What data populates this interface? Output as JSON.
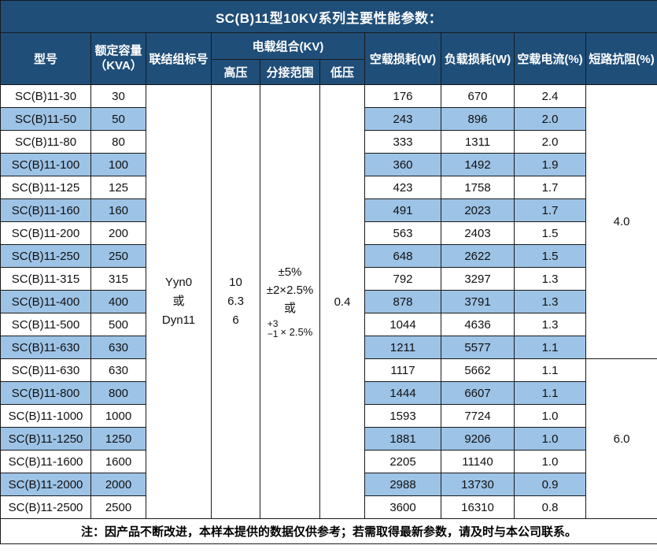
{
  "title": "SC(B)11型10KV系列主要性能参数：",
  "colors": {
    "header_bg": "#1f4e79",
    "header_text": "#ffffff",
    "stripe_bg": "#9dc3e6",
    "border": "#1a1a1a",
    "body_text": "#111111"
  },
  "header": {
    "model": "型号",
    "capacity_line1": "额定容量",
    "capacity_line2": "（KVA）",
    "vector_group": "联结组标号",
    "voltage_combo": "电载组合(KV)",
    "hv": "高压",
    "tap_range": "分接范围",
    "lv": "低压",
    "no_load_loss": "空载损耗(W)",
    "load_loss": "负载损耗(W)",
    "no_load_current": "空载电流(%)",
    "short_circuit_impedance": "短路抗阻(%)"
  },
  "merged": {
    "vector_group_lines": [
      "Yyn0",
      "或",
      "Dyn11"
    ],
    "hv_lines": [
      "10",
      "6.3",
      "6"
    ],
    "tap_lines": [
      "±5%",
      "±2×2.5%",
      "或"
    ],
    "tap_fraction": {
      "top": "+3",
      "bottom": "−1",
      "suffix": "× 2.5%"
    },
    "lv": "0.4",
    "impedance_groups": [
      {
        "value": "4.0",
        "start": 0,
        "span": 12
      },
      {
        "value": "6.0",
        "start": 12,
        "span": 7
      }
    ]
  },
  "rows": [
    {
      "model": "SC(B)11-30",
      "kva": "30",
      "no_load": "176",
      "load": "670",
      "current": "2.4"
    },
    {
      "model": "SC(B)11-50",
      "kva": "50",
      "no_load": "243",
      "load": "896",
      "current": "2.0"
    },
    {
      "model": "SC(B)11-80",
      "kva": "80",
      "no_load": "333",
      "load": "1311",
      "current": "2.0"
    },
    {
      "model": "SC(B)11-100",
      "kva": "100",
      "no_load": "360",
      "load": "1492",
      "current": "1.9"
    },
    {
      "model": "SC(B)11-125",
      "kva": "125",
      "no_load": "423",
      "load": "1758",
      "current": "1.7"
    },
    {
      "model": "SC(B)11-160",
      "kva": "160",
      "no_load": "491",
      "load": "2023",
      "current": "1.7"
    },
    {
      "model": "SC(B)11-200",
      "kva": "200",
      "no_load": "563",
      "load": "2403",
      "current": "1.5"
    },
    {
      "model": "SC(B)11-250",
      "kva": "250",
      "no_load": "648",
      "load": "2622",
      "current": "1.5"
    },
    {
      "model": "SC(B)11-315",
      "kva": "315",
      "no_load": "792",
      "load": "3297",
      "current": "1.3"
    },
    {
      "model": "SC(B)11-400",
      "kva": "400",
      "no_load": "878",
      "load": "3791",
      "current": "1.3"
    },
    {
      "model": "SC(B)11-500",
      "kva": "500",
      "no_load": "1044",
      "load": "4636",
      "current": "1.3"
    },
    {
      "model": "SC(B)11-630",
      "kva": "630",
      "no_load": "1211",
      "load": "5577",
      "current": "1.1"
    },
    {
      "model": "SC(B)11-630",
      "kva": "630",
      "no_load": "1117",
      "load": "5662",
      "current": "1.1"
    },
    {
      "model": "SC(B)11-800",
      "kva": "800",
      "no_load": "1444",
      "load": "6607",
      "current": "1.1"
    },
    {
      "model": "SC(B)11-1000",
      "kva": "1000",
      "no_load": "1593",
      "load": "7724",
      "current": "1.0"
    },
    {
      "model": "SC(B)11-1250",
      "kva": "1250",
      "no_load": "1881",
      "load": "9206",
      "current": "1.0"
    },
    {
      "model": "SC(B)11-1600",
      "kva": "1600",
      "no_load": "2205",
      "load": "11140",
      "current": "1.0"
    },
    {
      "model": "SC(B)11-2000",
      "kva": "2000",
      "no_load": "2988",
      "load": "13730",
      "current": "0.9"
    },
    {
      "model": "SC(B)11-2500",
      "kva": "2500",
      "no_load": "3600",
      "load": "16310",
      "current": "0.8"
    }
  ],
  "footer": "注：因产品不断改进，本样本提供的数据仅供参考；若需取得最新参数，请及时与本公司联系。"
}
